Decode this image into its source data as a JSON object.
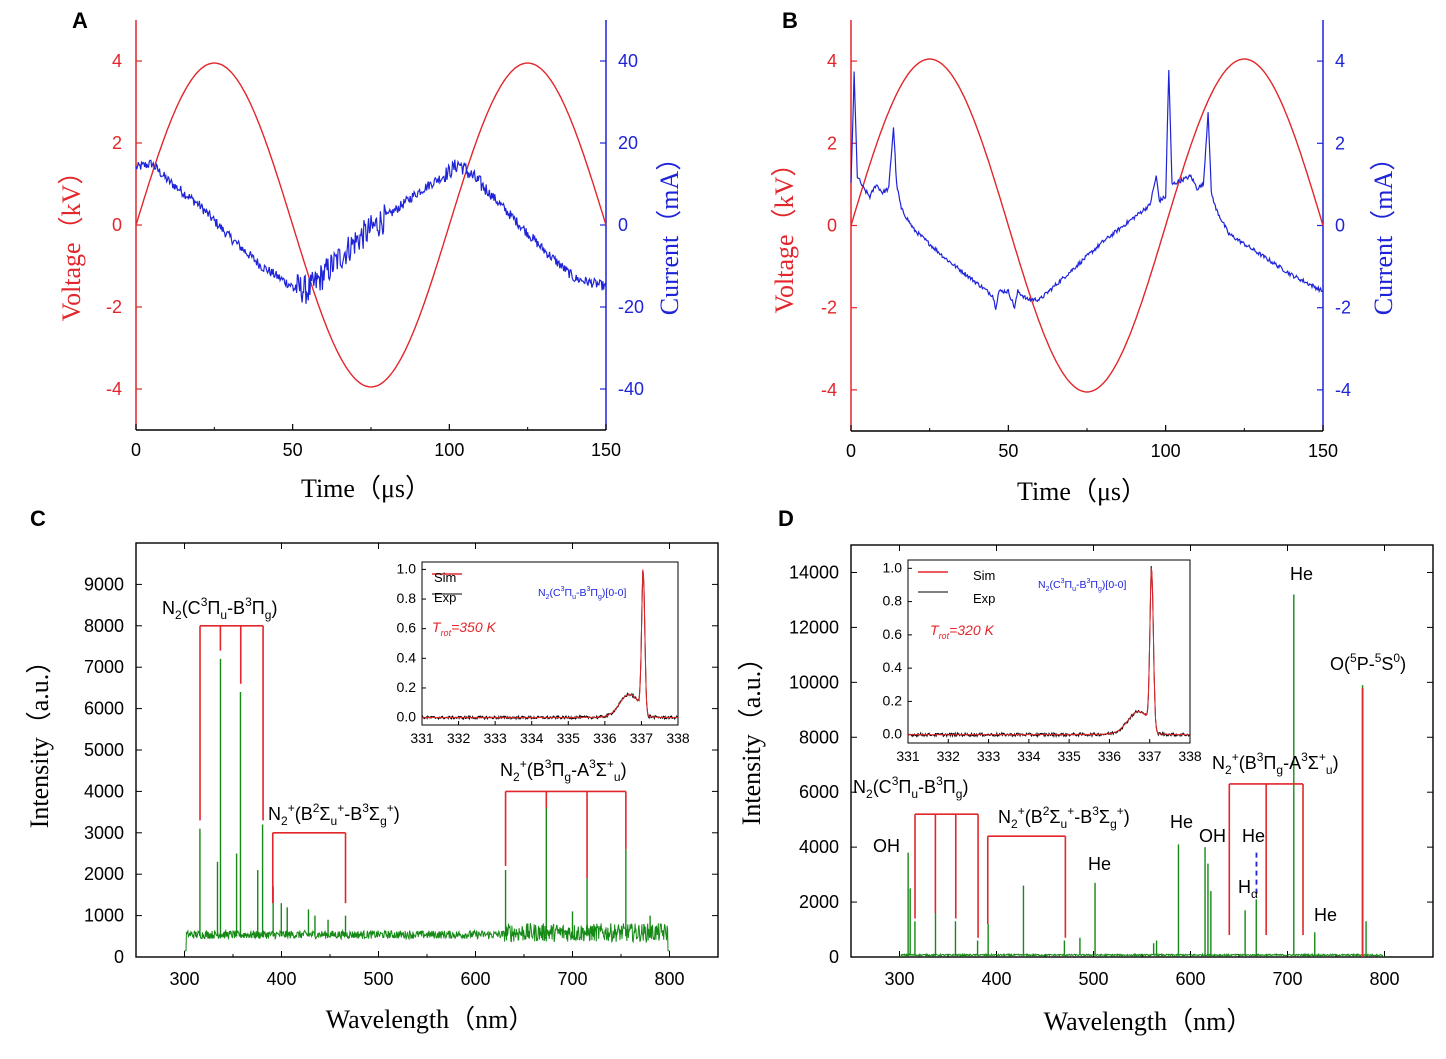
{
  "colors": {
    "red": "#e3262b",
    "blue": "#1f24d8",
    "green": "#168a16",
    "black": "#000000"
  },
  "chart_data": [
    {
      "panel": "A",
      "type": "line",
      "xlabel": "Time (μs)",
      "xlim": [
        0,
        150
      ],
      "xticks": [
        "0",
        "50",
        "100",
        "150"
      ],
      "y_left": {
        "label": "Voltage (kV)",
        "lim": [
          -5,
          5
        ],
        "ticks": [
          "-4",
          "-2",
          "0",
          "2",
          "4"
        ]
      },
      "y_right": {
        "label": "Current (mA)",
        "lim": [
          -50,
          50
        ],
        "ticks": [
          "-40",
          "-20",
          "0",
          "20",
          "40"
        ]
      },
      "series": [
        {
          "name": "Voltage",
          "axis": "left",
          "color": "red",
          "kind": "sine",
          "amplitude": 3.95,
          "period": 100
        },
        {
          "name": "Current",
          "axis": "right",
          "color": "blue",
          "x": [
            0,
            5,
            10,
            20,
            30,
            40,
            50,
            55,
            60,
            65,
            70,
            75,
            80,
            90,
            100,
            103,
            110,
            120,
            130,
            140,
            150
          ],
          "y": [
            14,
            15,
            11,
            5,
            -3,
            -10,
            -15,
            -16,
            -12,
            -8,
            -4,
            -1,
            2,
            8,
            13,
            15,
            10,
            2,
            -6,
            -13,
            -15
          ]
        }
      ]
    },
    {
      "panel": "B",
      "type": "line",
      "xlabel": "Time (μs)",
      "xlim": [
        0,
        150
      ],
      "xticks": [
        "0",
        "50",
        "100",
        "150"
      ],
      "y_left": {
        "label": "Voltage (kV)",
        "lim": [
          -5,
          5
        ],
        "ticks": [
          "-4",
          "-2",
          "0",
          "2",
          "4"
        ]
      },
      "y_right": {
        "label": "Current (mA)",
        "lim": [
          -5,
          5
        ],
        "ticks": [
          "-4",
          "-2",
          "0",
          "2",
          "4"
        ]
      },
      "series": [
        {
          "name": "Voltage",
          "axis": "left",
          "color": "red",
          "kind": "sine",
          "amplitude": 4.05,
          "period": 100
        },
        {
          "name": "Current",
          "axis": "right",
          "color": "blue",
          "x": [
            0,
            1,
            2,
            4,
            6,
            8,
            10,
            12,
            13.5,
            14.5,
            16,
            20,
            30,
            40,
            45,
            46,
            47,
            50,
            52,
            53,
            56,
            60,
            70,
            80,
            90,
            95,
            97,
            98,
            100,
            101,
            102,
            105,
            108,
            110,
            112,
            113.5,
            114.5,
            116,
            120,
            130,
            140,
            150
          ],
          "y": [
            1.0,
            3.7,
            1.2,
            0.9,
            0.7,
            1.0,
            0.8,
            0.9,
            2.4,
            1.0,
            0.4,
            -0.1,
            -0.8,
            -1.4,
            -1.7,
            -2.0,
            -1.6,
            -1.6,
            -2.0,
            -1.6,
            -1.8,
            -1.8,
            -1.1,
            -0.4,
            0.2,
            0.5,
            1.2,
            0.6,
            0.7,
            3.8,
            1.0,
            1.1,
            1.2,
            0.9,
            1.0,
            2.8,
            0.8,
            0.4,
            -0.2,
            -0.7,
            -1.2,
            -1.6
          ]
        }
      ]
    },
    {
      "panel": "C",
      "type": "spectrum",
      "xlabel": "Wavelength (nm)",
      "ylabel": "Intensity (a.u.)",
      "xlim": [
        250,
        850
      ],
      "ylim": [
        0,
        10000
      ],
      "xticks": [
        "300",
        "400",
        "500",
        "600",
        "700",
        "800"
      ],
      "yticks": [
        "0",
        "1000",
        "2000",
        "3000",
        "4000",
        "5000",
        "6000",
        "7000",
        "8000",
        "9000"
      ],
      "baseline": 500,
      "noise_ranges": [
        [
          300,
          630,
          200
        ],
        [
          630,
          800,
          450
        ]
      ],
      "peaks": [
        [
          315.9,
          3100
        ],
        [
          337.1,
          7200
        ],
        [
          357.7,
          6400
        ],
        [
          380.5,
          3200
        ],
        [
          375.5,
          2100
        ],
        [
          353.7,
          2500
        ],
        [
          334.0,
          2300
        ],
        [
          391.4,
          1700
        ],
        [
          399.8,
          1300
        ],
        [
          405.9,
          1200
        ],
        [
          427.8,
          1150
        ],
        [
          434.5,
          1000
        ],
        [
          448.0,
          900
        ],
        [
          466.0,
          1000
        ],
        [
          631.0,
          2100
        ],
        [
          673.0,
          3600
        ],
        [
          715.0,
          1900
        ],
        [
          755.0,
          2600
        ],
        [
          700,
          1100
        ],
        [
          780,
          1000
        ]
      ],
      "annotations": [
        {
          "label": "N2(C3Πu-B3Πg)",
          "text": "N",
          "sub1": "2",
          "mid1": "(C",
          "sup1": "3",
          "mid2": "Π",
          "sub2": "u",
          "mid3": "-B",
          "sup2": "3",
          "mid4": "Π",
          "sub3": "g",
          "tail": ")",
          "bracket_y": 8000,
          "x_from": 316,
          "x_to": 381,
          "lines": [
            316,
            337,
            358,
            381
          ],
          "line_bottoms": [
            3300,
            7400,
            6600,
            3300
          ]
        },
        {
          "label": "N2+(B2Σu+-B3Σg+)",
          "text": "N",
          "sub1": "2",
          "sup1": "+",
          "mid1": "(B",
          "sup2": "2",
          "mid2": "Σ",
          "sub2": "u",
          "sup3": "+",
          "mid3": "-B",
          "sup4": "3",
          "mid4": "Σ",
          "sub3": "g",
          "sup5": "+",
          "tail": ")",
          "bracket_y": 3000,
          "x_from": 391,
          "x_to": 466,
          "lines": [
            391,
            466
          ],
          "line_bottoms": [
            1300,
            1300
          ]
        },
        {
          "label": "N2+(B3Πg-A3Σ+u)",
          "text": "N",
          "sub1": "2",
          "sup1": "+",
          "mid1": "(B",
          "sup2": "3",
          "mid2": "Π",
          "sub2": "g",
          "mid3": "-A",
          "sup3": "3",
          "mid4": "Σ",
          "sup4": "+",
          "sub3": "u",
          "tail": ")",
          "bracket_y": 4000,
          "x_from": 631,
          "x_to": 755,
          "lines": [
            631,
            673,
            715,
            755
          ],
          "line_bottoms": [
            2200,
            3600,
            1900,
            2600
          ]
        }
      ],
      "inset": {
        "xlim": [
          331,
          338
        ],
        "ylim": [
          -0.05,
          1.05
        ],
        "xticks": [
          "331",
          "332",
          "333",
          "334",
          "335",
          "336",
          "337",
          "338"
        ],
        "yticks": [
          "0.0",
          "0.2",
          "0.4",
          "0.6",
          "0.8",
          "1.0"
        ],
        "legend": [
          "Sim",
          "Exp"
        ],
        "band_label": "N2(C3Πu-B3Πg)[0-0]",
        "band_parts": {
          "a": "N",
          "b": "2",
          "c": "(C",
          "d": "3",
          "e": "Π",
          "f": "u",
          "g": "-B",
          "h": "3",
          "i": "Π",
          "j": "g",
          "k": ")[0-0]"
        },
        "temperature": "Trot=350 K",
        "t_main": "T",
        "t_sub": "rot",
        "t_tail": "=350 K",
        "peak_x": 337.05,
        "shoulder_x": 336.65,
        "shoulder_y": 0.14
      }
    },
    {
      "panel": "D",
      "type": "spectrum",
      "xlabel": "Wavelength (nm)",
      "ylabel": "Intensity (a.u.)",
      "xlim": [
        250,
        850
      ],
      "ylim": [
        0,
        15000
      ],
      "xticks": [
        "300",
        "400",
        "500",
        "600",
        "700",
        "800"
      ],
      "yticks": [
        "0",
        "2000",
        "4000",
        "6000",
        "8000",
        "10000",
        "12000",
        "14000"
      ],
      "baseline": 60,
      "noise_ranges": [
        [
          300,
          800,
          60
        ]
      ],
      "peaks": [
        [
          308.9,
          3800
        ],
        [
          311.0,
          2500
        ],
        [
          315.9,
          1300
        ],
        [
          337.1,
          1600
        ],
        [
          357.7,
          1300
        ],
        [
          380.5,
          600
        ],
        [
          391.4,
          1200
        ],
        [
          427.8,
          2600
        ],
        [
          501.6,
          2700
        ],
        [
          587.6,
          4100
        ],
        [
          615.0,
          4000
        ],
        [
          618.0,
          3400
        ],
        [
          621.0,
          2400
        ],
        [
          656.3,
          1700
        ],
        [
          667.8,
          2100
        ],
        [
          706.5,
          13200
        ],
        [
          728.1,
          900
        ],
        [
          777.4,
          9900
        ],
        [
          781,
          1300
        ],
        [
          565,
          600
        ],
        [
          562,
          500
        ],
        [
          470,
          600
        ],
        [
          486,
          700
        ]
      ],
      "annotations": [
        {
          "label": "N2(C3Πu-B3Πg)",
          "bracket_y": 5200,
          "x_from": 316,
          "x_to": 381,
          "lines": [
            316,
            337,
            358,
            381
          ],
          "line_bottoms": [
            1400,
            1600,
            1400,
            700
          ]
        },
        {
          "label": "N2+(B2Σu+-B3Σg+)",
          "bracket_y": 4400,
          "x_from": 391,
          "x_to": 471,
          "lines": [
            391,
            471
          ],
          "line_bottoms": [
            1200,
            700
          ]
        },
        {
          "label": "N2+(B3Πg-A3Σ+u)",
          "bracket_y": 6300,
          "x_from": 640,
          "x_to": 716,
          "lines": [
            640,
            678,
            716
          ],
          "line_bottoms": [
            800,
            800,
            800
          ]
        },
        {
          "label": "OH",
          "x": 296,
          "y": 3900
        },
        {
          "label": "He",
          "x": 501.6,
          "y": 3200
        },
        {
          "label": "He",
          "x": 584,
          "y": 4700
        },
        {
          "label": "OH",
          "x": 618,
          "y": 4300
        },
        {
          "label": "He",
          "x": 676,
          "y": 4400
        },
        {
          "label": "Hα",
          "x": 656,
          "y": 2400
        },
        {
          "label": "He",
          "x": 706.5,
          "y": 13900
        },
        {
          "label": "He",
          "x": 734,
          "y": 1500
        },
        {
          "label": "O(5P-5S0)",
          "x": 779,
          "y": 10400
        }
      ],
      "oxygen_marker": {
        "x": 777.4,
        "from": 9800,
        "to": 0
      },
      "h_alpha_dash": {
        "x": 668,
        "from": 3800,
        "to": 2300
      },
      "inset": {
        "xlim": [
          331,
          338
        ],
        "ylim": [
          -0.05,
          1.05
        ],
        "xticks": [
          "331",
          "332",
          "333",
          "334",
          "335",
          "336",
          "337",
          "338"
        ],
        "yticks": [
          "0.0",
          "0.2",
          "0.4",
          "0.6",
          "0.8",
          "1.0"
        ],
        "legend": [
          "Sim",
          "Exp"
        ],
        "band_label": "N2(C3Πu-B3Πg)[0-0]",
        "temperature": "Trot=320 K",
        "t_main": "T",
        "t_sub": "rot",
        "t_tail": "=320 K",
        "peak_x": 337.05,
        "shoulder_x": 336.7,
        "shoulder_y": 0.12
      }
    }
  ],
  "labels": {
    "A": "A",
    "B": "B",
    "C": "C",
    "D": "D",
    "time": "Time",
    "time_unit": "（μs）",
    "voltage": "Voltage（kV）",
    "current": "Current（mA）",
    "wavelength": "Wavelength",
    "wavelength_unit": "（nm）",
    "intensity": "Intensity（a.u.）",
    "he": "He",
    "oh": "OH",
    "h": "H",
    "h_sub": "α",
    "o": "O(",
    "o_sup1": "5",
    "o_mid": "P-",
    "o_sup2": "5",
    "o_mid2": "S",
    "o_sup3": "0",
    "o_tail": ")"
  }
}
